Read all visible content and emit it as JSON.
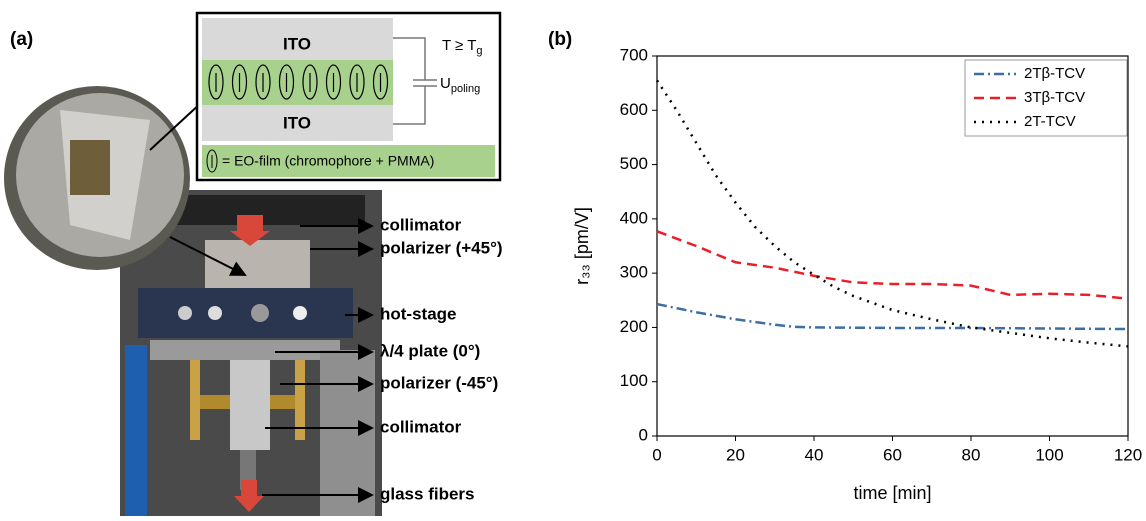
{
  "panel_a": {
    "label": "(a)",
    "diagram": {
      "ito_top": "ITO",
      "ito_bottom": "ITO",
      "condition": {
        "text": "T ≥ T",
        "sub": "g"
      },
      "voltage": {
        "text": "U",
        "sub": "poling"
      },
      "film_legend": "= EO-film (chromophore + PMMA)"
    },
    "components": [
      "collimator",
      "polarizer (+45°)",
      "hot-stage",
      "λ/4 plate (0°)",
      "polarizer (-45°)",
      "collimator",
      "glass fibers"
    ]
  },
  "chart_data": {
    "type": "line",
    "panel_label": "(b)",
    "xlabel": "time [min]",
    "ylabel": "r₃₃ [pm/V]",
    "xlim": [
      0,
      120
    ],
    "xticks": [
      0,
      20,
      40,
      60,
      80,
      100,
      120
    ],
    "ylim": [
      0,
      700
    ],
    "yticks": [
      0,
      100,
      200,
      300,
      400,
      500,
      600,
      700
    ],
    "legend": "upper right",
    "series": [
      {
        "name": "2Tβ-TCV",
        "color": "#3e6fa3",
        "dash": "dashdot",
        "x": [
          0,
          10,
          20,
          30,
          35,
          40,
          60,
          80,
          100,
          120
        ],
        "values": [
          243,
          228,
          215,
          205,
          201,
          200,
          199,
          199,
          198,
          197
        ]
      },
      {
        "name": "3Tβ-TCV",
        "color": "#e8202a",
        "dash": "dashed",
        "x": [
          0,
          10,
          20,
          30,
          40,
          50,
          60,
          70,
          80,
          90,
          100,
          110,
          120
        ],
        "values": [
          377,
          350,
          320,
          310,
          295,
          283,
          280,
          280,
          277,
          260,
          262,
          260,
          253
        ]
      },
      {
        "name": "2T-TCV",
        "color": "#000000",
        "dash": "dotted",
        "x": [
          0,
          5,
          10,
          15,
          20,
          25,
          30,
          35,
          40,
          45,
          50,
          60,
          70,
          80,
          90,
          100,
          110,
          120
        ],
        "values": [
          655,
          600,
          540,
          480,
          430,
          385,
          350,
          320,
          297,
          275,
          258,
          232,
          215,
          200,
          190,
          180,
          172,
          165
        ]
      }
    ]
  }
}
